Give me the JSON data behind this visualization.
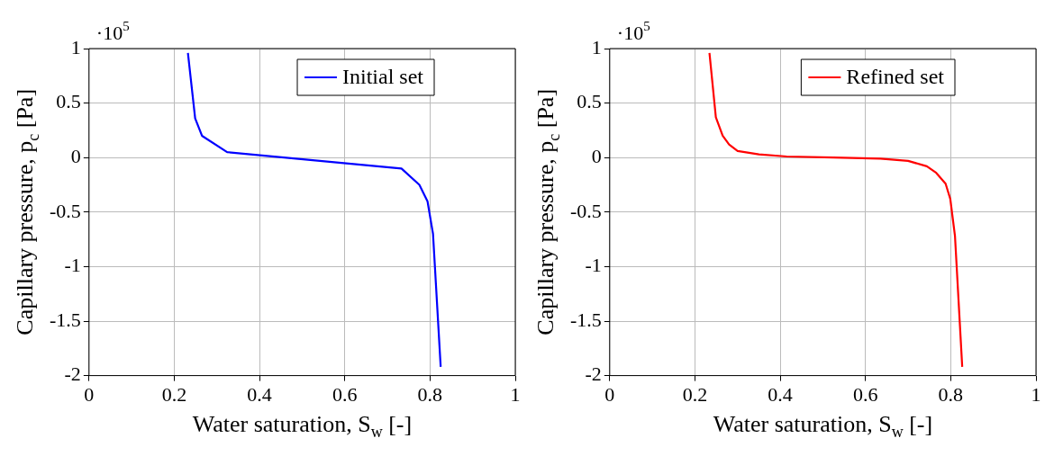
{
  "chart_data": [
    {
      "type": "line",
      "xlabel": "Water saturation, S$_{w}$ [-]",
      "ylabel": "Capillary pressure, p$_{c}$ [Pa]",
      "annotations": [
        "·10$^{5}$"
      ],
      "x": [
        0.232,
        0.249,
        0.265,
        0.324,
        0.733,
        0.775,
        0.794,
        0.807,
        0.825
      ],
      "series": [
        {
          "name": "Initial set",
          "color": "#0000ff",
          "values": [
            0.96,
            0.36,
            0.2,
            0.05,
            -0.1,
            -0.25,
            -0.4,
            -0.7,
            -1.92
          ]
        }
      ],
      "xlim": [
        0,
        1
      ],
      "ylim": [
        -2,
        1
      ],
      "xticks": [
        0,
        0.2,
        0.4,
        0.6,
        0.8,
        1
      ],
      "yticks": [
        -2,
        -1.5,
        -1,
        -0.5,
        0,
        0.5,
        1
      ],
      "grid": true,
      "legend": "top right",
      "marker": "none",
      "line_style": "solid"
    },
    {
      "type": "line",
      "xlabel": "Water saturation, S$_{w}$ [-]",
      "ylabel": "Capillary pressure, p$_{c}$ [Pa]",
      "annotations": [
        "·10$^{5}$"
      ],
      "x": [
        0.234,
        0.249,
        0.265,
        0.28,
        0.3,
        0.35,
        0.415,
        0.525,
        0.635,
        0.7,
        0.744,
        0.766,
        0.788,
        0.799,
        0.81,
        0.827
      ],
      "series": [
        {
          "name": "Refined set",
          "color": "#ff0000",
          "values": [
            0.96,
            0.37,
            0.2,
            0.12,
            0.06,
            0.03,
            0.01,
            0,
            -0.01,
            -0.03,
            -0.08,
            -0.14,
            -0.24,
            -0.38,
            -0.72,
            -1.92
          ]
        }
      ],
      "xlim": [
        0,
        1
      ],
      "ylim": [
        -2,
        1
      ],
      "xticks": [
        0,
        0.2,
        0.4,
        0.6,
        0.8,
        1
      ],
      "yticks": [
        -2,
        -1.5,
        -1,
        -0.5,
        0,
        0.5,
        1
      ],
      "grid": true,
      "legend": "top right",
      "marker": "none",
      "line_style": "solid"
    }
  ]
}
